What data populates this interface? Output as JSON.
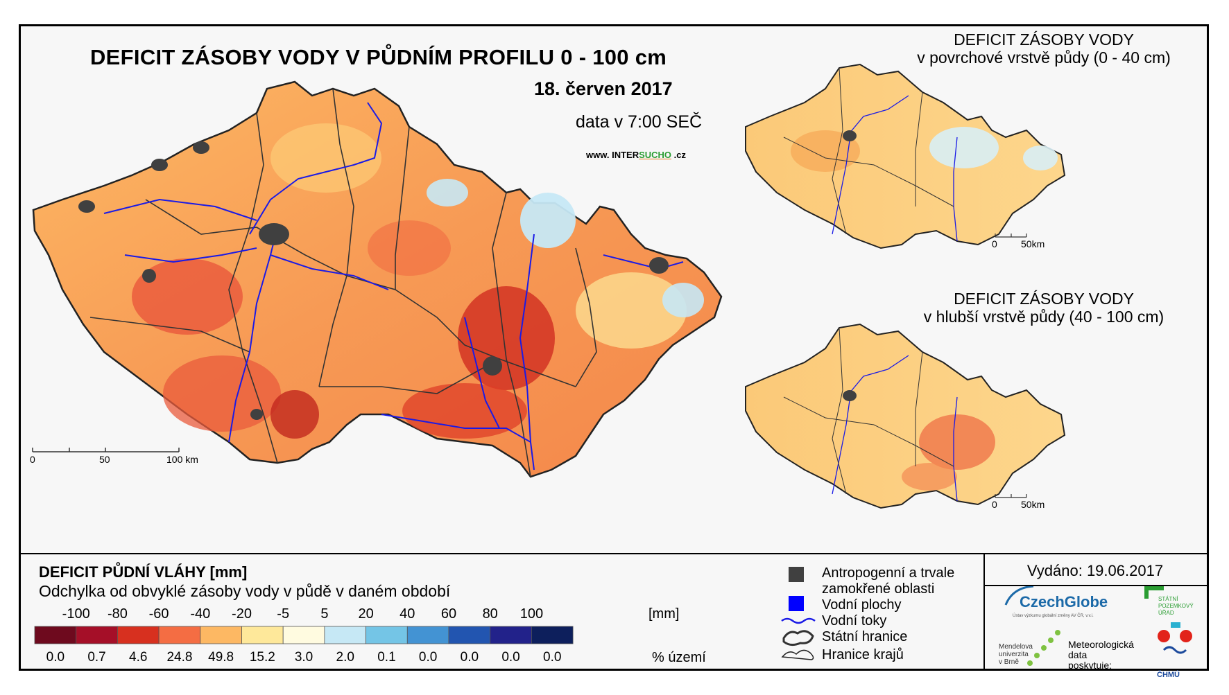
{
  "main_map": {
    "title": "DEFICIT ZÁSOBY VODY V PŮDNÍM PROFILU 0 - 100 cm",
    "date": "18. červen 2017",
    "time": "data v 7:00 SEČ",
    "website_prefix": "www. INTER",
    "website_accent": "SUCHO",
    "website_suffix": " .cz",
    "scale_labels": [
      "0",
      "50",
      "100 km"
    ]
  },
  "inset_top": {
    "title_line1": "DEFICIT ZÁSOBY VODY",
    "title_line2": "v povrchové vrstvě půdy (0 - 40 cm)",
    "scale_labels": [
      "0",
      "50km"
    ]
  },
  "inset_bottom": {
    "title_line1": "DEFICIT ZÁSOBY VODY",
    "title_line2": "v hlubší vrstvě půdy (40 - 100 cm)",
    "scale_labels": [
      "0",
      "50km"
    ]
  },
  "legend": {
    "title": "DEFICIT PŮDNÍ VLÁHY [mm]",
    "subtitle": "Odchylka od obvyklé zásoby vody v půdě v daném období",
    "ticks": [
      "-100",
      "-80",
      "-60",
      "-40",
      "-20",
      "-5",
      "5",
      "20",
      "40",
      "60",
      "80",
      "100"
    ],
    "tick_unit": "[mm]",
    "classes": [
      {
        "color": "#6e0a1e",
        "percent": "0.0"
      },
      {
        "color": "#a50f28",
        "percent": "0.7"
      },
      {
        "color": "#d7301f",
        "percent": "4.6"
      },
      {
        "color": "#f46d43",
        "percent": "24.8"
      },
      {
        "color": "#fdb863",
        "percent": "49.8"
      },
      {
        "color": "#fee89a",
        "percent": "15.2"
      },
      {
        "color": "#fffbe0",
        "percent": "3.0"
      },
      {
        "color": "#c6e8f5",
        "percent": "2.0"
      },
      {
        "color": "#74c5e6",
        "percent": "0.1"
      },
      {
        "color": "#4393d3",
        "percent": "0.0"
      },
      {
        "color": "#2255b0",
        "percent": "0.0"
      },
      {
        "color": "#22228a",
        "percent": "0.0"
      },
      {
        "color": "#0d1f5c",
        "percent": "0.0"
      }
    ],
    "percent_unit": "% území",
    "symbols": {
      "anthropogenic_line1": "Antropogenní a trvale",
      "anthropogenic_line2": "zamokřené oblasti",
      "water_bodies": "Vodní plochy",
      "rivers": "Vodní toky",
      "state_border": "Státní hranice",
      "region_border": "Hranice krajů"
    }
  },
  "credits": {
    "issued": "Vydáno: 19.06.2017",
    "czechglobe": "CzechGlobe",
    "czechglobe_sub": "Ústav výzkumu globální změny AV ČR, v.v.i.",
    "spu_line1": "STÁTNÍ",
    "spu_line2": "POZEMKOVÝ",
    "spu_line3": "ÚŘAD",
    "mendel_line1": "Mendelova",
    "mendel_line2": "univerzita",
    "mendel_line3": "v Brně",
    "meteo_line1": "Meteorologická",
    "meteo_line2": "data",
    "meteo_line3": "poskytuje:",
    "chmu": "ČHMÚ"
  },
  "colors": {
    "river": "#1a1ae6",
    "urban": "#404040",
    "border": "#333333",
    "background": "#f7f7f7"
  }
}
